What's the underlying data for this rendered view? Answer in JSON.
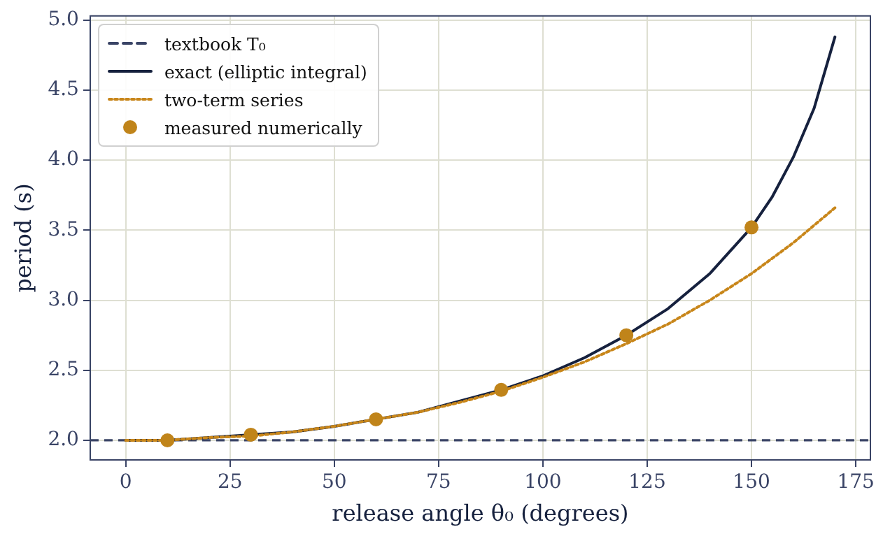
{
  "chart_data": {
    "type": "line",
    "xlabel": "release angle θ₀ (degrees)",
    "ylabel": "period (s)",
    "xlim": [
      -8.5,
      178.5
    ],
    "ylim": [
      1.86,
      5.03
    ],
    "xticks": [
      0,
      25,
      50,
      75,
      100,
      125,
      150,
      175
    ],
    "yticks": [
      {
        "value": 2,
        "label": "2.0"
      },
      {
        "value": 2.5,
        "label": "2.5"
      },
      {
        "value": 3,
        "label": "3.0"
      },
      {
        "value": 3.5,
        "label": "3.5"
      },
      {
        "value": 4,
        "label": "4.0"
      },
      {
        "value": 4.5,
        "label": "4.5"
      },
      {
        "value": 5,
        "label": "5.0"
      }
    ],
    "grid": true,
    "legend": "top left",
    "ref_lines": [
      {
        "axis": "y",
        "value": 2.0,
        "label": "textbook T₀",
        "color": "#3a4466",
        "line_style": "dashed"
      }
    ],
    "series": [
      {
        "name": "exact (elliptic integral)",
        "color": "#16213e",
        "line_style": "solid",
        "marker": "none",
        "x": [
          0,
          10,
          20,
          30,
          40,
          50,
          60,
          70,
          80,
          90,
          100,
          110,
          120,
          130,
          140,
          150,
          155,
          160,
          165,
          170
        ],
        "values": [
          2.0,
          2.0,
          2.02,
          2.04,
          2.06,
          2.1,
          2.15,
          2.2,
          2.28,
          2.36,
          2.46,
          2.59,
          2.75,
          2.94,
          3.19,
          3.52,
          3.74,
          4.02,
          4.37,
          4.88
        ]
      },
      {
        "name": "two-term series",
        "color": "#c8861a",
        "line_style": "dotted",
        "marker": "none",
        "x": [
          0,
          10,
          20,
          30,
          40,
          50,
          60,
          70,
          80,
          90,
          100,
          110,
          120,
          130,
          140,
          150,
          160,
          170
        ],
        "values": [
          2.0,
          2.0,
          2.02,
          2.03,
          2.06,
          2.1,
          2.15,
          2.2,
          2.27,
          2.35,
          2.45,
          2.56,
          2.69,
          2.83,
          3.0,
          3.19,
          3.41,
          3.66
        ]
      },
      {
        "name": "measured numerically",
        "type": "scatter",
        "color": "#c0841a",
        "marker": "circle",
        "x": [
          10,
          30,
          60,
          90,
          120,
          150
        ],
        "values": [
          2.0,
          2.04,
          2.15,
          2.36,
          2.75,
          3.52
        ]
      }
    ]
  }
}
